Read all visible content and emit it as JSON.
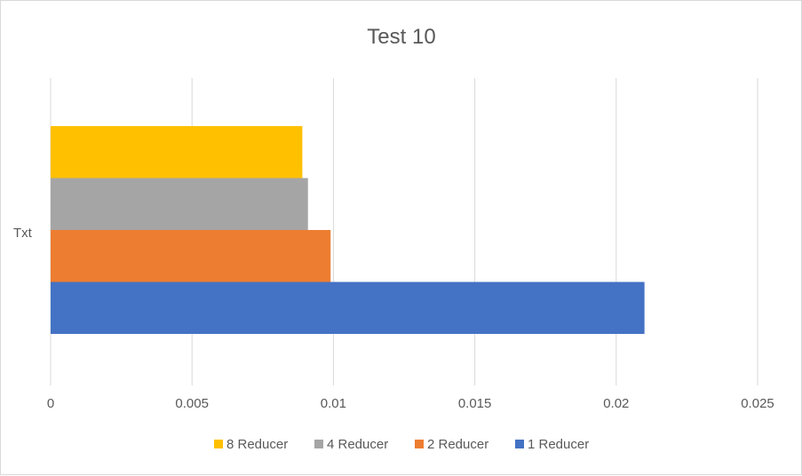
{
  "chart_data": {
    "type": "bar",
    "orientation": "horizontal",
    "title": "Test 10",
    "categories": [
      "Txt"
    ],
    "series": [
      {
        "name": "1 Reducer",
        "values": [
          0.021
        ],
        "color": "#4472C4"
      },
      {
        "name": "2 Reducer",
        "values": [
          0.0099
        ],
        "color": "#ED7D31"
      },
      {
        "name": "4 Reducer",
        "values": [
          0.0091
        ],
        "color": "#A5A5A5"
      },
      {
        "name": "8 Reducer",
        "values": [
          0.0089
        ],
        "color": "#FFC000"
      }
    ],
    "xlim": [
      0,
      0.025
    ],
    "xticks": [
      0,
      0.005,
      0.01,
      0.015,
      0.02,
      0.025
    ],
    "xtick_labels": [
      "0",
      "0.005",
      "0.01",
      "0.015",
      "0.02",
      "0.025"
    ],
    "grid": "vertical",
    "legend_position": "bottom",
    "legend_order": [
      "8 Reducer",
      "4 Reducer",
      "2 Reducer",
      "1 Reducer"
    ]
  }
}
